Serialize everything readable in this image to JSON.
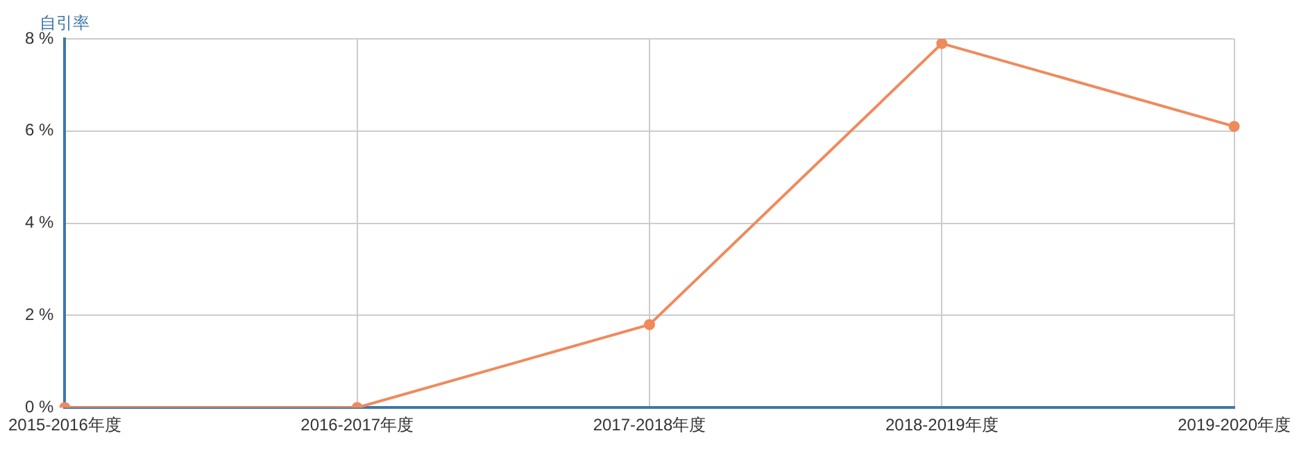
{
  "chart_data": {
    "type": "line",
    "ylabel": "自引率",
    "categories": [
      "2015-2016年度",
      "2016-2017年度",
      "2017-2018年度",
      "2018-2019年度",
      "2019-2020年度"
    ],
    "series": [
      {
        "color": "#ef8a5d",
        "values": [
          0,
          0,
          1.8,
          7.9,
          6.1
        ]
      }
    ],
    "ylim": [
      0,
      8
    ],
    "yticks": [
      {
        "value": 0,
        "label": "0 %"
      },
      {
        "value": 2,
        "label": "2 %"
      },
      {
        "value": 4,
        "label": "4 %"
      },
      {
        "value": 6,
        "label": "6 %"
      },
      {
        "value": 8,
        "label": "8 %"
      }
    ],
    "grid": true,
    "legend": false,
    "marker": "circle",
    "line_style": "solid"
  }
}
